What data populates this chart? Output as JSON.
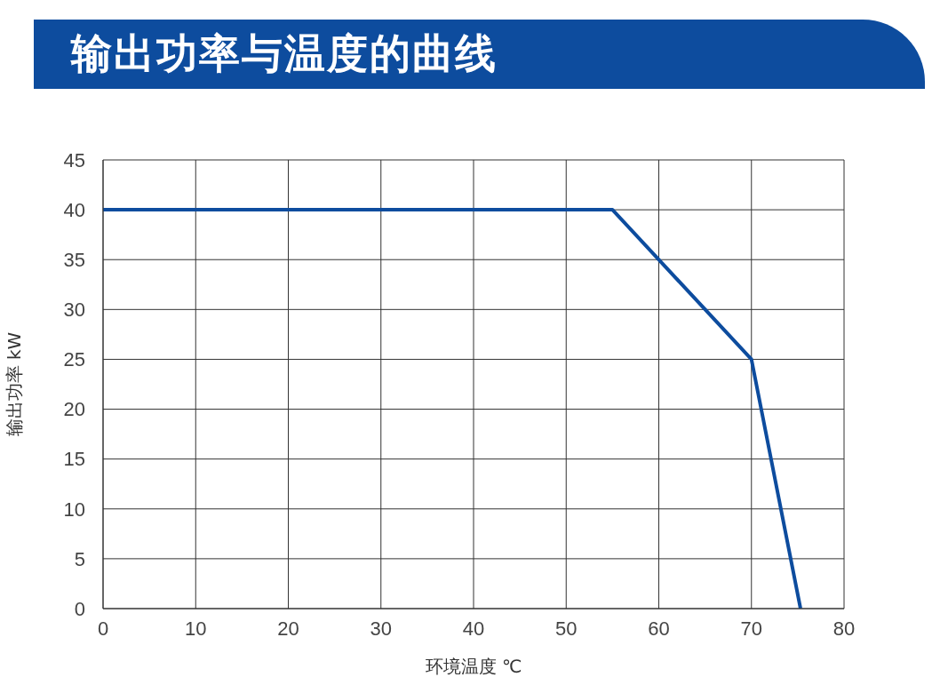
{
  "chart_data": {
    "type": "line",
    "title": "输出功率与温度的曲线",
    "xlabel": "环境温度 ℃",
    "ylabel": "输出功率 kW",
    "x": [
      0,
      55,
      70,
      75.3
    ],
    "series": [
      {
        "color": "#0d4c9e",
        "values": [
          40,
          40,
          25,
          0
        ]
      }
    ],
    "xlim": [
      0,
      80
    ],
    "xticks": [
      0,
      10,
      20,
      30,
      40,
      50,
      60,
      70,
      80
    ],
    "ylim": [
      0,
      45
    ],
    "yticks": [
      0,
      5,
      10,
      15,
      20,
      25,
      30,
      35,
      40,
      45
    ],
    "grid": true,
    "marker": "none",
    "line_style": "solid",
    "legend": false
  }
}
